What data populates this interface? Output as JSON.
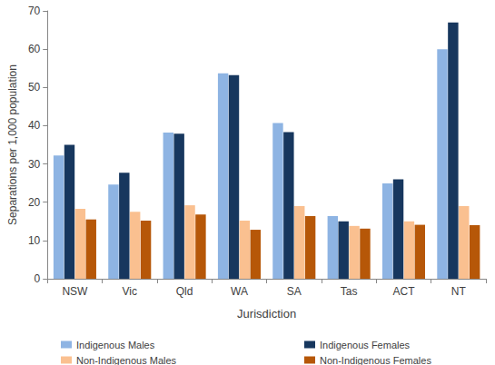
{
  "chart_data": {
    "type": "bar",
    "x_label": "Jurisdiction",
    "y_label": "Separations per 1,000 population",
    "categories": [
      "NSW",
      "Vic",
      "Qld",
      "WA",
      "SA",
      "Tas",
      "ACT",
      "NT"
    ],
    "series": [
      {
        "name": "Indigenous Males",
        "color": "#8eb4e3",
        "values": [
          32.2,
          24.6,
          38.2,
          53.7,
          40.7,
          16.4,
          24.9,
          60.0
        ]
      },
      {
        "name": "Indigenous Females",
        "color": "#17375e",
        "values": [
          35.0,
          27.7,
          37.9,
          53.2,
          38.3,
          15.0,
          26.0,
          67.0
        ]
      },
      {
        "name": "Non-Indigenous Males",
        "color": "#fac090",
        "values": [
          18.3,
          17.5,
          19.2,
          15.2,
          19.0,
          13.8,
          15.0,
          19.0
        ]
      },
      {
        "name": "Non-Indigenous Females",
        "color": "#b65708",
        "values": [
          15.5,
          15.2,
          16.8,
          12.8,
          16.4,
          13.1,
          14.1,
          14.0
        ]
      }
    ],
    "ylim": [
      0,
      70
    ],
    "yticks": [
      0,
      10,
      20,
      30,
      40,
      50,
      60,
      70
    ],
    "grid": false,
    "legend": "bottom"
  }
}
